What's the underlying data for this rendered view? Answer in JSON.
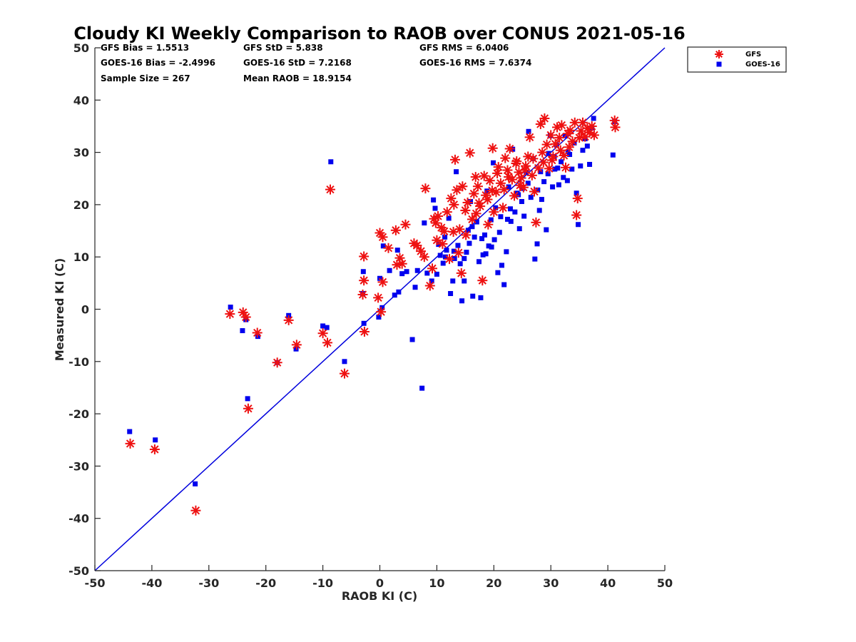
{
  "chart_data": {
    "type": "scatter",
    "title": "Cloudy KI Weekly Comparison to RAOB over CONUS 2021-05-16",
    "xlabel": "RAOB KI (C)",
    "ylabel": "Measured KI (C)",
    "xlim": [
      -50,
      50
    ],
    "ylim": [
      -50,
      50
    ],
    "xticks": [
      "-50",
      "-40",
      "-30",
      "-20",
      "-10",
      "0",
      "10",
      "20",
      "30",
      "40",
      "50"
    ],
    "yticks": [
      "50",
      "40",
      "30",
      "20",
      "10",
      "0",
      "-10",
      "-20",
      "-30",
      "-40",
      "-50"
    ],
    "legend_position": "top-right outside",
    "reference_line": {
      "from": [
        -50,
        -50
      ],
      "to": [
        50,
        50
      ],
      "color": "#0000dd"
    },
    "stats": [
      [
        "GFS Bias = 1.5513",
        "GFS StD = 5.838",
        "GFS RMS = 6.0406"
      ],
      [
        "GOES-16 Bias = -2.4996",
        "GOES-16 StD = 7.2168",
        "GOES-16 RMS = 7.6374"
      ],
      [
        "Sample Size = 267",
        "Mean RAOB = 18.9154",
        ""
      ]
    ],
    "series": [
      {
        "name": "GFS",
        "marker": "asterisk",
        "color": "#ee1111",
        "points": [
          [
            -43.8,
            -25.7
          ],
          [
            -39.5,
            -26.8
          ],
          [
            -32.3,
            -38.5
          ],
          [
            -26.3,
            -0.9
          ],
          [
            -24.0,
            -0.6
          ],
          [
            -23.5,
            -1.5
          ],
          [
            -23.1,
            -19.0
          ],
          [
            -21.5,
            -4.5
          ],
          [
            -18.0,
            -10.2
          ],
          [
            -16.0,
            -2.1
          ],
          [
            -14.6,
            -6.8
          ],
          [
            -10.0,
            -4.6
          ],
          [
            -9.2,
            -6.4
          ],
          [
            -8.7,
            22.9
          ],
          [
            -6.2,
            -12.3
          ],
          [
            -2.8,
            10.1
          ],
          [
            -2.8,
            5.5
          ],
          [
            -2.7,
            -4.3
          ],
          [
            -3.0,
            2.8
          ],
          [
            0.0,
            14.6
          ],
          [
            0.5,
            13.8
          ],
          [
            0.5,
            5.2
          ],
          [
            0.2,
            -0.5
          ],
          [
            -0.3,
            2.2
          ],
          [
            1.5,
            11.7
          ],
          [
            2.8,
            15.1
          ],
          [
            3.0,
            8.5
          ],
          [
            3.5,
            9.8
          ],
          [
            3.9,
            8.7
          ],
          [
            4.5,
            16.2
          ],
          [
            6.0,
            12.6
          ],
          [
            6.5,
            12.2
          ],
          [
            7.2,
            11.1
          ],
          [
            7.8,
            10.0
          ],
          [
            8.0,
            23.1
          ],
          [
            8.8,
            4.5
          ],
          [
            9.2,
            7.8
          ],
          [
            9.5,
            17.3
          ],
          [
            9.8,
            16.5
          ],
          [
            10.0,
            13.2
          ],
          [
            10.2,
            17.8
          ],
          [
            10.8,
            15.6
          ],
          [
            11.3,
            14.9
          ],
          [
            11.8,
            18.6
          ],
          [
            12.2,
            9.6
          ],
          [
            12.5,
            21.2
          ],
          [
            13.0,
            20.0
          ],
          [
            13.2,
            28.6
          ],
          [
            13.5,
            22.8
          ],
          [
            14.0,
            15.3
          ],
          [
            14.3,
            6.9
          ],
          [
            14.5,
            23.5
          ],
          [
            15.0,
            18.9
          ],
          [
            15.4,
            20.4
          ],
          [
            15.8,
            29.9
          ],
          [
            16.2,
            17.2
          ],
          [
            16.5,
            22.1
          ],
          [
            16.8,
            25.3
          ],
          [
            17.2,
            23.5
          ],
          [
            17.6,
            19.7
          ],
          [
            18.0,
            5.5
          ],
          [
            18.3,
            25.5
          ],
          [
            18.6,
            21.8
          ],
          [
            19.0,
            16.2
          ],
          [
            19.3,
            24.6
          ],
          [
            19.8,
            30.8
          ],
          [
            20.0,
            18.6
          ],
          [
            20.4,
            22.4
          ],
          [
            20.8,
            27.2
          ],
          [
            21.2,
            24.1
          ],
          [
            21.6,
            19.4
          ],
          [
            22.0,
            28.9
          ],
          [
            22.4,
            26.6
          ],
          [
            22.8,
            30.7
          ],
          [
            23.2,
            24.8
          ],
          [
            23.6,
            21.7
          ],
          [
            24.0,
            28.3
          ],
          [
            24.4,
            26.2
          ],
          [
            24.8,
            25.1
          ],
          [
            25.2,
            23.3
          ],
          [
            25.6,
            27.4
          ],
          [
            26.0,
            29.2
          ],
          [
            26.3,
            32.9
          ],
          [
            26.7,
            25.6
          ],
          [
            27.1,
            22.5
          ],
          [
            27.4,
            16.6
          ],
          [
            27.8,
            27.0
          ],
          [
            28.2,
            35.4
          ],
          [
            28.5,
            30.0
          ],
          [
            28.9,
            36.5
          ],
          [
            29.3,
            31.5
          ],
          [
            29.7,
            26.9
          ],
          [
            30.0,
            33.3
          ],
          [
            30.4,
            29.2
          ],
          [
            30.8,
            31.6
          ],
          [
            31.1,
            34.8
          ],
          [
            31.5,
            32.8
          ],
          [
            31.9,
            35.2
          ],
          [
            32.3,
            29.4
          ],
          [
            32.6,
            27.1
          ],
          [
            33.0,
            33.6
          ],
          [
            33.4,
            34.2
          ],
          [
            33.8,
            32.1
          ],
          [
            34.2,
            35.7
          ],
          [
            34.5,
            18.0
          ],
          [
            34.7,
            21.2
          ],
          [
            35.0,
            32.8
          ],
          [
            35.3,
            34.1
          ],
          [
            35.6,
            35.7
          ],
          [
            36.0,
            33.0
          ],
          [
            36.4,
            34.6
          ],
          [
            36.8,
            33.8
          ],
          [
            37.2,
            35.0
          ],
          [
            37.6,
            33.3
          ],
          [
            41.2,
            36.1
          ],
          [
            41.3,
            34.8
          ],
          [
            13.8,
            10.8
          ],
          [
            15.1,
            14.2
          ],
          [
            16.9,
            18.3
          ],
          [
            18.9,
            21.0
          ],
          [
            20.6,
            26.0
          ],
          [
            21.8,
            22.9
          ],
          [
            23.9,
            27.9
          ],
          [
            25.5,
            26.6
          ],
          [
            26.9,
            28.8
          ],
          [
            28.7,
            28.1
          ],
          [
            30.2,
            28.5
          ],
          [
            31.7,
            30.4
          ],
          [
            33.2,
            31.0
          ],
          [
            24.6,
            23.7
          ],
          [
            22.6,
            25.3
          ],
          [
            19.7,
            22.7
          ],
          [
            17.4,
            20.3
          ],
          [
            12.9,
            14.8
          ],
          [
            11.0,
            12.5
          ]
        ]
      },
      {
        "name": "GOES-16",
        "marker": "square",
        "color": "#0000ee",
        "points": [
          [
            -43.9,
            -23.4
          ],
          [
            -39.4,
            -25.0
          ],
          [
            -32.4,
            -33.4
          ],
          [
            -26.2,
            0.4
          ],
          [
            -24.1,
            -4.1
          ],
          [
            -23.2,
            -17.1
          ],
          [
            -23.5,
            -2.0
          ],
          [
            -21.4,
            -5.2
          ],
          [
            -18.0,
            -10.2
          ],
          [
            -16.0,
            -1.2
          ],
          [
            -14.7,
            -7.6
          ],
          [
            -10.0,
            -3.2
          ],
          [
            -9.3,
            -3.5
          ],
          [
            -8.6,
            28.2
          ],
          [
            -6.2,
            -10.0
          ],
          [
            -2.9,
            7.2
          ],
          [
            -3.0,
            3.0
          ],
          [
            -2.8,
            -2.7
          ],
          [
            -0.2,
            -1.5
          ],
          [
            0.0,
            5.9
          ],
          [
            0.4,
            0.3
          ],
          [
            0.6,
            12.1
          ],
          [
            1.7,
            7.4
          ],
          [
            2.6,
            2.7
          ],
          [
            3.1,
            11.3
          ],
          [
            3.3,
            3.3
          ],
          [
            3.9,
            6.8
          ],
          [
            4.7,
            7.2
          ],
          [
            5.7,
            -5.8
          ],
          [
            6.2,
            4.2
          ],
          [
            6.6,
            7.4
          ],
          [
            7.4,
            -15.1
          ],
          [
            7.8,
            16.5
          ],
          [
            8.3,
            6.9
          ],
          [
            9.1,
            5.4
          ],
          [
            9.4,
            20.9
          ],
          [
            9.7,
            19.3
          ],
          [
            10.0,
            6.7
          ],
          [
            10.3,
            12.4
          ],
          [
            10.6,
            10.3
          ],
          [
            11.1,
            8.8
          ],
          [
            11.4,
            13.8
          ],
          [
            11.7,
            11.3
          ],
          [
            12.1,
            17.4
          ],
          [
            12.4,
            3.0
          ],
          [
            12.8,
            5.4
          ],
          [
            13.1,
            9.7
          ],
          [
            13.4,
            26.3
          ],
          [
            13.7,
            12.2
          ],
          [
            14.1,
            8.7
          ],
          [
            14.4,
            1.6
          ],
          [
            14.8,
            5.4
          ],
          [
            15.2,
            10.9
          ],
          [
            15.5,
            15.1
          ],
          [
            15.9,
            20.6
          ],
          [
            16.3,
            2.5
          ],
          [
            16.6,
            13.8
          ],
          [
            17.0,
            16.7
          ],
          [
            17.4,
            9.1
          ],
          [
            17.7,
            2.2
          ],
          [
            18.1,
            10.4
          ],
          [
            18.4,
            14.2
          ],
          [
            18.8,
            22.6
          ],
          [
            19.1,
            12.1
          ],
          [
            19.5,
            17.1
          ],
          [
            19.9,
            28.0
          ],
          [
            20.3,
            19.4
          ],
          [
            20.7,
            7.0
          ],
          [
            21.0,
            14.7
          ],
          [
            21.4,
            8.4
          ],
          [
            21.8,
            4.7
          ],
          [
            22.2,
            11.0
          ],
          [
            22.6,
            23.4
          ],
          [
            23.0,
            16.8
          ],
          [
            23.3,
            30.6
          ],
          [
            23.7,
            18.6
          ],
          [
            24.1,
            22.2
          ],
          [
            24.5,
            15.4
          ],
          [
            24.9,
            20.6
          ],
          [
            25.3,
            17.8
          ],
          [
            25.7,
            26.2
          ],
          [
            26.1,
            34.0
          ],
          [
            26.5,
            21.4
          ],
          [
            26.9,
            28.8
          ],
          [
            27.2,
            9.6
          ],
          [
            27.6,
            12.5
          ],
          [
            28.0,
            18.9
          ],
          [
            28.4,
            21.0
          ],
          [
            28.8,
            24.4
          ],
          [
            29.2,
            15.2
          ],
          [
            29.6,
            29.8
          ],
          [
            29.9,
            33.2
          ],
          [
            30.3,
            23.4
          ],
          [
            30.7,
            26.8
          ],
          [
            31.0,
            31.4
          ],
          [
            31.4,
            23.8
          ],
          [
            31.8,
            28.2
          ],
          [
            32.2,
            25.2
          ],
          [
            32.5,
            33.2
          ],
          [
            32.9,
            24.6
          ],
          [
            33.3,
            29.6
          ],
          [
            33.7,
            26.8
          ],
          [
            34.1,
            31.8
          ],
          [
            34.5,
            22.2
          ],
          [
            34.8,
            16.2
          ],
          [
            35.2,
            27.4
          ],
          [
            35.6,
            30.4
          ],
          [
            36.0,
            32.6
          ],
          [
            36.4,
            31.2
          ],
          [
            36.8,
            27.7
          ],
          [
            37.2,
            34.7
          ],
          [
            37.5,
            36.5
          ],
          [
            40.9,
            29.5
          ],
          [
            41.2,
            35.9
          ],
          [
            15.7,
            12.6
          ],
          [
            17.9,
            13.5
          ],
          [
            19.6,
            11.9
          ],
          [
            21.2,
            17.7
          ],
          [
            22.9,
            19.2
          ],
          [
            24.3,
            21.9
          ],
          [
            26.0,
            24.1
          ],
          [
            27.7,
            22.8
          ],
          [
            29.5,
            25.9
          ],
          [
            31.2,
            27.0
          ],
          [
            33.0,
            30.1
          ],
          [
            18.6,
            10.6
          ],
          [
            20.1,
            13.3
          ],
          [
            14.8,
            9.7
          ],
          [
            13.0,
            11.1
          ],
          [
            11.5,
            10.0
          ],
          [
            25.0,
            23.1
          ],
          [
            28.2,
            26.3
          ],
          [
            30.6,
            29.2
          ],
          [
            16.2,
            15.8
          ],
          [
            22.4,
            17.2
          ]
        ]
      }
    ]
  }
}
